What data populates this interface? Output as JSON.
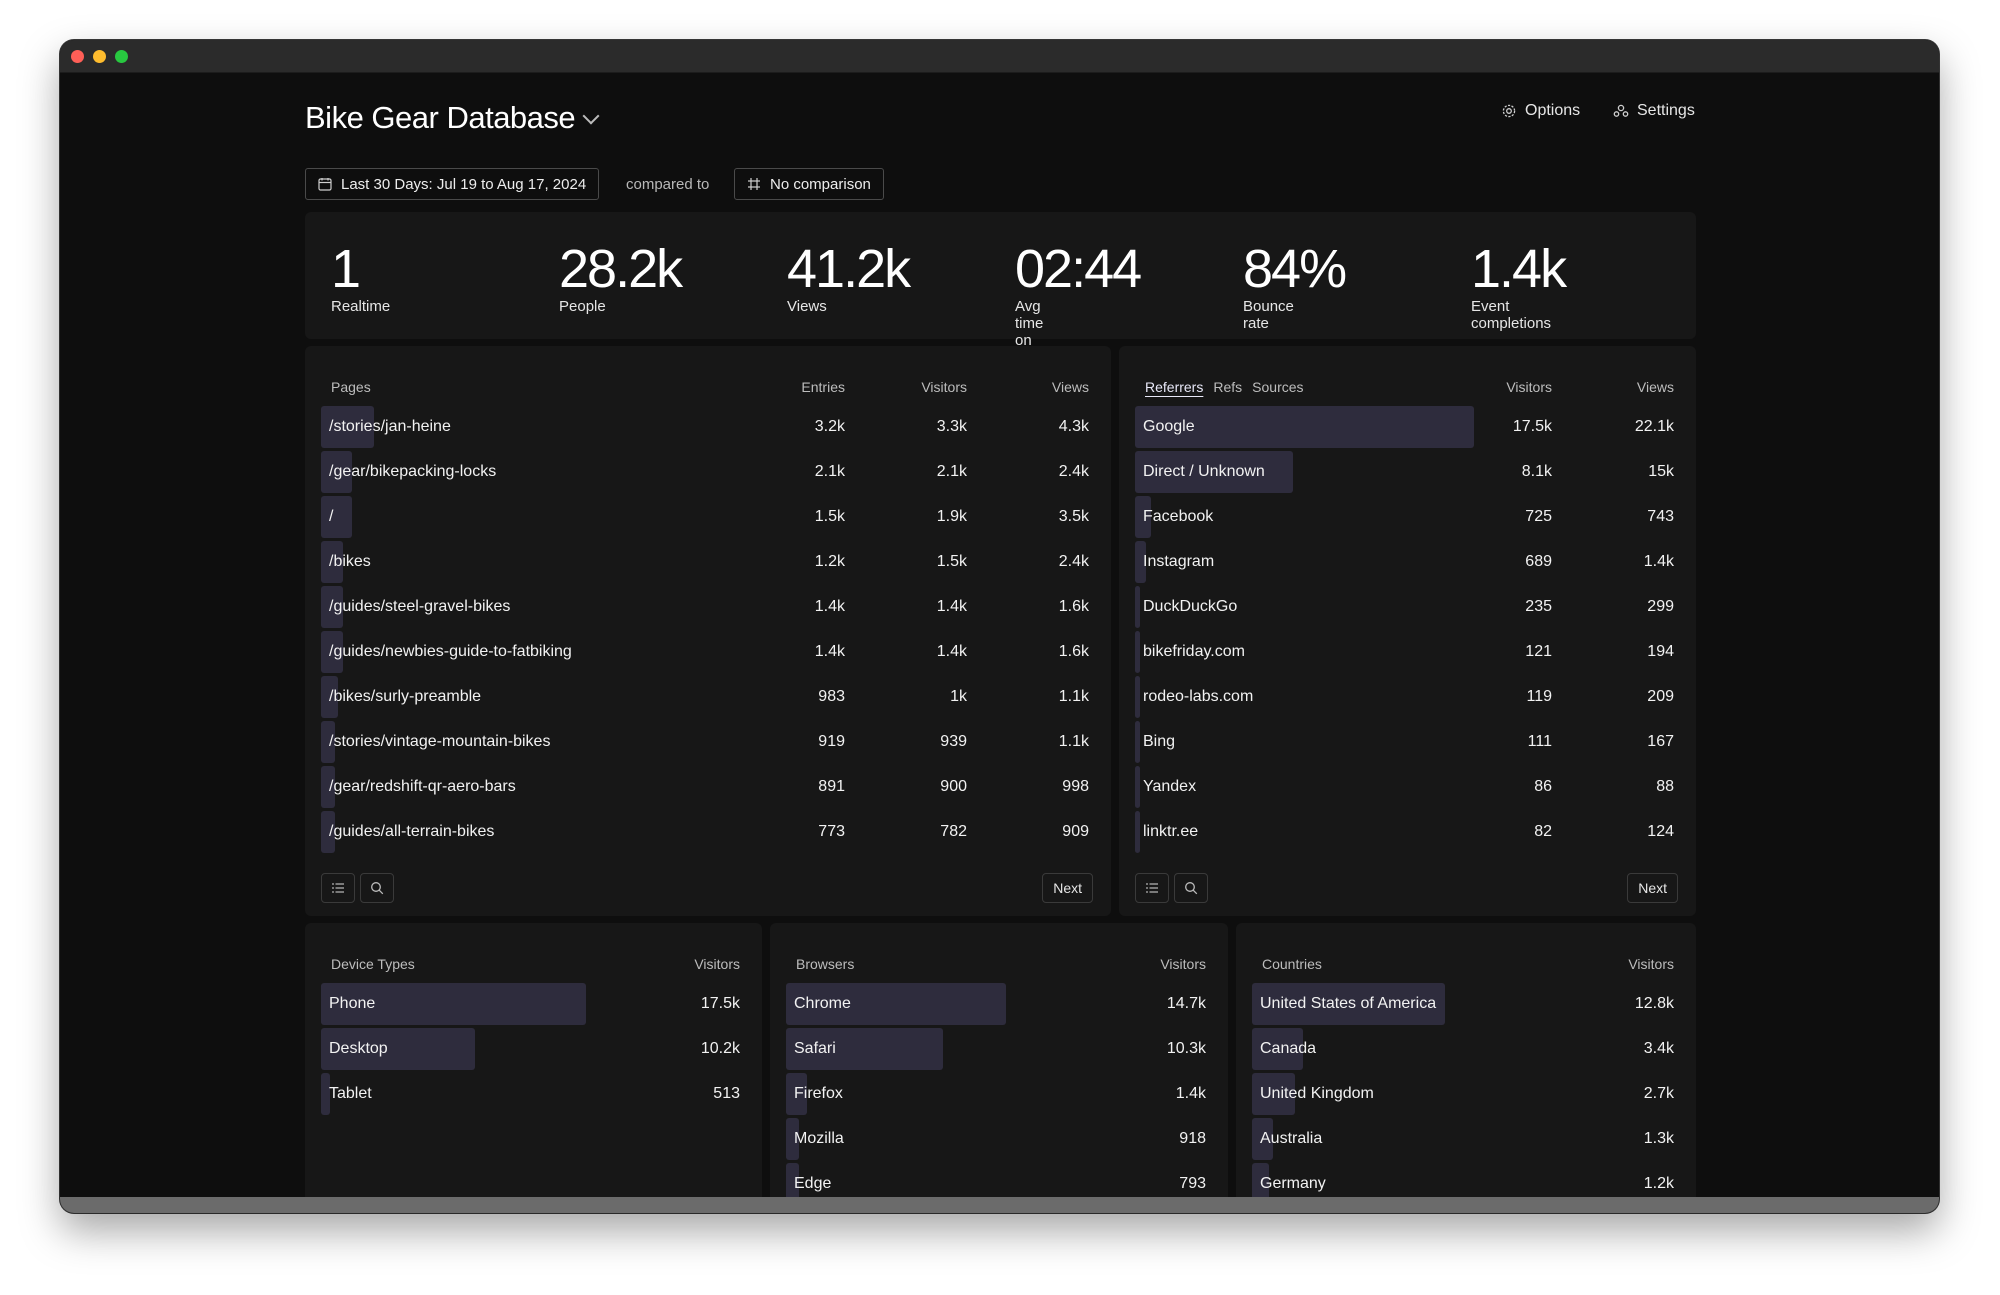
{
  "header": {
    "title": "Bike Gear Database",
    "options_label": "Options",
    "settings_label": "Settings"
  },
  "date_range": {
    "label": "Last 30 Days: Jul 19 to Aug 17, 2024",
    "compared_to": "compared to",
    "comparison_label": "No comparison"
  },
  "stats": [
    {
      "value": "1",
      "label": "Realtime"
    },
    {
      "value": "28.2k",
      "label": "People"
    },
    {
      "value": "41.2k",
      "label": "Views"
    },
    {
      "value": "02:44",
      "label": "Avg time on site"
    },
    {
      "value": "84%",
      "label": "Bounce rate"
    },
    {
      "value": "1.4k",
      "label": "Event completions"
    }
  ],
  "pages": {
    "title": "Pages",
    "col_entries": "Entries",
    "col_visitors": "Visitors",
    "col_views": "Views",
    "next_label": "Next",
    "rows": [
      {
        "label": "/stories/jan-heine",
        "entries": "3.2k",
        "visitors": "3.3k",
        "views": "4.3k",
        "share": 0.19
      },
      {
        "label": "/gear/bikepacking-locks",
        "entries": "2.1k",
        "visitors": "2.1k",
        "views": "2.4k",
        "share": 0.11
      },
      {
        "label": "/",
        "entries": "1.5k",
        "visitors": "1.9k",
        "views": "3.5k",
        "share": 0.11
      },
      {
        "label": "/bikes",
        "entries": "1.2k",
        "visitors": "1.5k",
        "views": "2.4k",
        "share": 0.08
      },
      {
        "label": "/guides/steel-gravel-bikes",
        "entries": "1.4k",
        "visitors": "1.4k",
        "views": "1.6k",
        "share": 0.08
      },
      {
        "label": "/guides/newbies-guide-to-fatbiking",
        "entries": "1.4k",
        "visitors": "1.4k",
        "views": "1.6k",
        "share": 0.08
      },
      {
        "label": "/bikes/surly-preamble",
        "entries": "983",
        "visitors": "1k",
        "views": "1.1k",
        "share": 0.06
      },
      {
        "label": "/stories/vintage-mountain-bikes",
        "entries": "919",
        "visitors": "939",
        "views": "1.1k",
        "share": 0.05
      },
      {
        "label": "/gear/redshift-qr-aero-bars",
        "entries": "891",
        "visitors": "900",
        "views": "998",
        "share": 0.05
      },
      {
        "label": "/guides/all-terrain-bikes",
        "entries": "773",
        "visitors": "782",
        "views": "909",
        "share": 0.05
      }
    ]
  },
  "referrers": {
    "tabs": [
      "Referrers",
      "Refs",
      "Sources"
    ],
    "col_visitors": "Visitors",
    "col_views": "Views",
    "next_label": "Next",
    "rows": [
      {
        "label": "Google",
        "visitors": "17.5k",
        "views": "22.1k",
        "share": 0.62
      },
      {
        "label": "Direct / Unknown",
        "visitors": "8.1k",
        "views": "15k",
        "share": 0.29
      },
      {
        "label": "Facebook",
        "visitors": "725",
        "views": "743",
        "share": 0.03
      },
      {
        "label": "Instagram",
        "visitors": "689",
        "views": "1.4k",
        "share": 0.02
      },
      {
        "label": "DuckDuckGo",
        "visitors": "235",
        "views": "299",
        "share": 0.01
      },
      {
        "label": "bikefriday.com",
        "visitors": "121",
        "views": "194",
        "share": 0
      },
      {
        "label": "rodeo-labs.com",
        "visitors": "119",
        "views": "209",
        "share": 0
      },
      {
        "label": "Bing",
        "visitors": "111",
        "views": "167",
        "share": 0
      },
      {
        "label": "Yandex",
        "visitors": "86",
        "views": "88",
        "share": 0
      },
      {
        "label": "linktr.ee",
        "visitors": "82",
        "views": "124",
        "share": 0
      }
    ]
  },
  "devices": {
    "title": "Device Types",
    "col_visitors": "Visitors",
    "rows": [
      {
        "label": "Phone",
        "visitors": "17.5k",
        "share": 0.62
      },
      {
        "label": "Desktop",
        "visitors": "10.2k",
        "share": 0.36
      },
      {
        "label": "Tablet",
        "visitors": "513",
        "share": 0.02
      }
    ]
  },
  "browsers": {
    "title": "Browsers",
    "col_visitors": "Visitors",
    "rows": [
      {
        "label": "Chrome",
        "visitors": "14.7k",
        "share": 0.52
      },
      {
        "label": "Safari",
        "visitors": "10.3k",
        "share": 0.37
      },
      {
        "label": "Firefox",
        "visitors": "1.4k",
        "share": 0.05
      },
      {
        "label": "Mozilla",
        "visitors": "918",
        "share": 0.03
      },
      {
        "label": "Edge",
        "visitors": "793",
        "share": 0.03
      }
    ]
  },
  "countries": {
    "title": "Countries",
    "col_visitors": "Visitors",
    "rows": [
      {
        "label": "United States of America",
        "visitors": "12.8k",
        "share": 0.45
      },
      {
        "label": "Canada",
        "visitors": "3.4k",
        "share": 0.12
      },
      {
        "label": "United Kingdom",
        "visitors": "2.7k",
        "share": 0.1
      },
      {
        "label": "Australia",
        "visitors": "1.3k",
        "share": 0.05
      },
      {
        "label": "Germany",
        "visitors": "1.2k",
        "share": 0.04
      }
    ]
  }
}
